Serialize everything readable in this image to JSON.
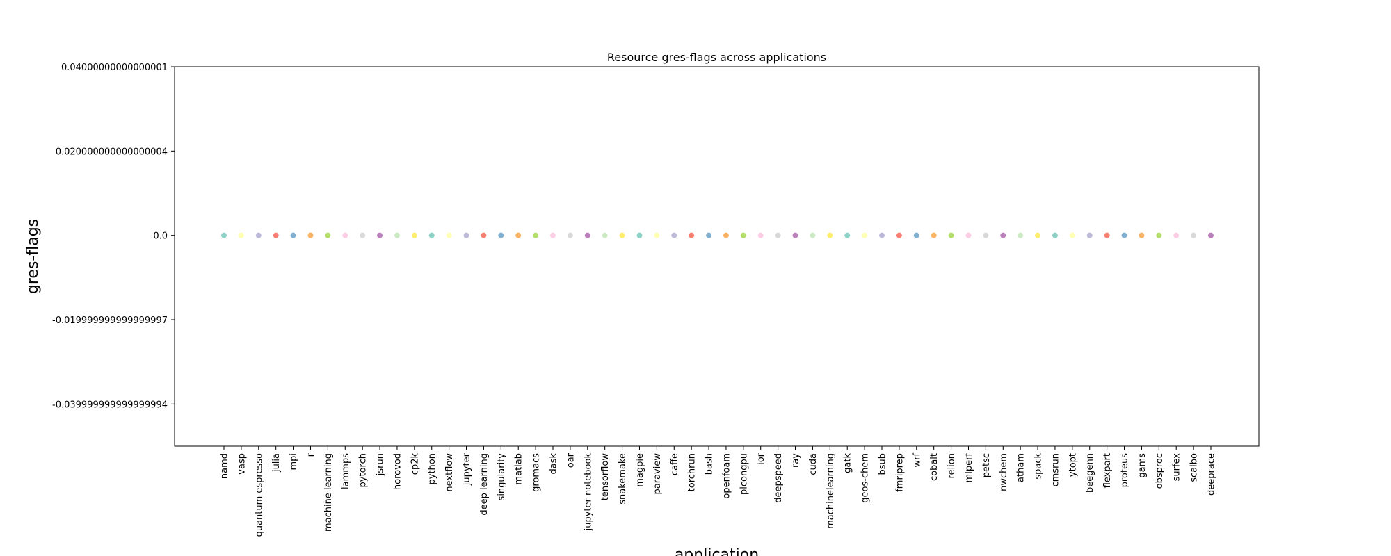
{
  "chart_data": {
    "type": "scatter",
    "title": "Resource gres-flags across applications",
    "xlabel": "application",
    "ylabel": "gres-flags",
    "ylim": [
      -0.05,
      0.04
    ],
    "yticks": [
      {
        "value": 0.04,
        "label": "0.04000000000000001"
      },
      {
        "value": 0.02,
        "label": "0.020000000000000004"
      },
      {
        "value": 0.0,
        "label": "0.0"
      },
      {
        "value": -0.02,
        "label": "-0.019999999999999997"
      },
      {
        "value": -0.04,
        "label": "-0.039999999999999994"
      }
    ],
    "grid": false,
    "legend": "none",
    "categories": [
      "namd",
      "vasp",
      "quantum espresso",
      "julia",
      "mpi",
      "r",
      "machine learning",
      "lammps",
      "pytorch",
      "jsrun",
      "horovod",
      "cp2k",
      "python",
      "nextflow",
      "jupyter",
      "deep learning",
      "singularity",
      "matlab",
      "gromacs",
      "dask",
      "oar",
      "jupyter notebook",
      "tensorflow",
      "snakemake",
      "magpie",
      "paraview",
      "caffe",
      "torchrun",
      "bash",
      "openfoam",
      "picongpu",
      "ior",
      "deepspeed",
      "ray",
      "cuda",
      "machinelearning",
      "gatk",
      "geos-chem",
      "bsub",
      "fmriprep",
      "wrf",
      "cobalt",
      "relion",
      "mlperf",
      "petsc",
      "nwchem",
      "atham",
      "spack",
      "cmsrun",
      "ytopt",
      "beegenn",
      "flexpart",
      "proteus",
      "gams",
      "obsproc",
      "surfex",
      "scalbo",
      "deeprace"
    ],
    "values": [
      0,
      0,
      0,
      0,
      0,
      0,
      0,
      0,
      0,
      0,
      0,
      0,
      0,
      0,
      0,
      0,
      0,
      0,
      0,
      0,
      0,
      0,
      0,
      0,
      0,
      0,
      0,
      0,
      0,
      0,
      0,
      0,
      0,
      0,
      0,
      0,
      0,
      0,
      0,
      0,
      0,
      0,
      0,
      0,
      0,
      0,
      0,
      0,
      0,
      0,
      0,
      0,
      0,
      0,
      0,
      0,
      0,
      0
    ],
    "palette": [
      "#8dd3c7",
      "#ffffb3",
      "#bebada",
      "#fb8072",
      "#80b1d3",
      "#fdb462",
      "#b3de69",
      "#fccde5",
      "#d9d9d9",
      "#bc80bd",
      "#ccebc5",
      "#ffed6f"
    ]
  }
}
